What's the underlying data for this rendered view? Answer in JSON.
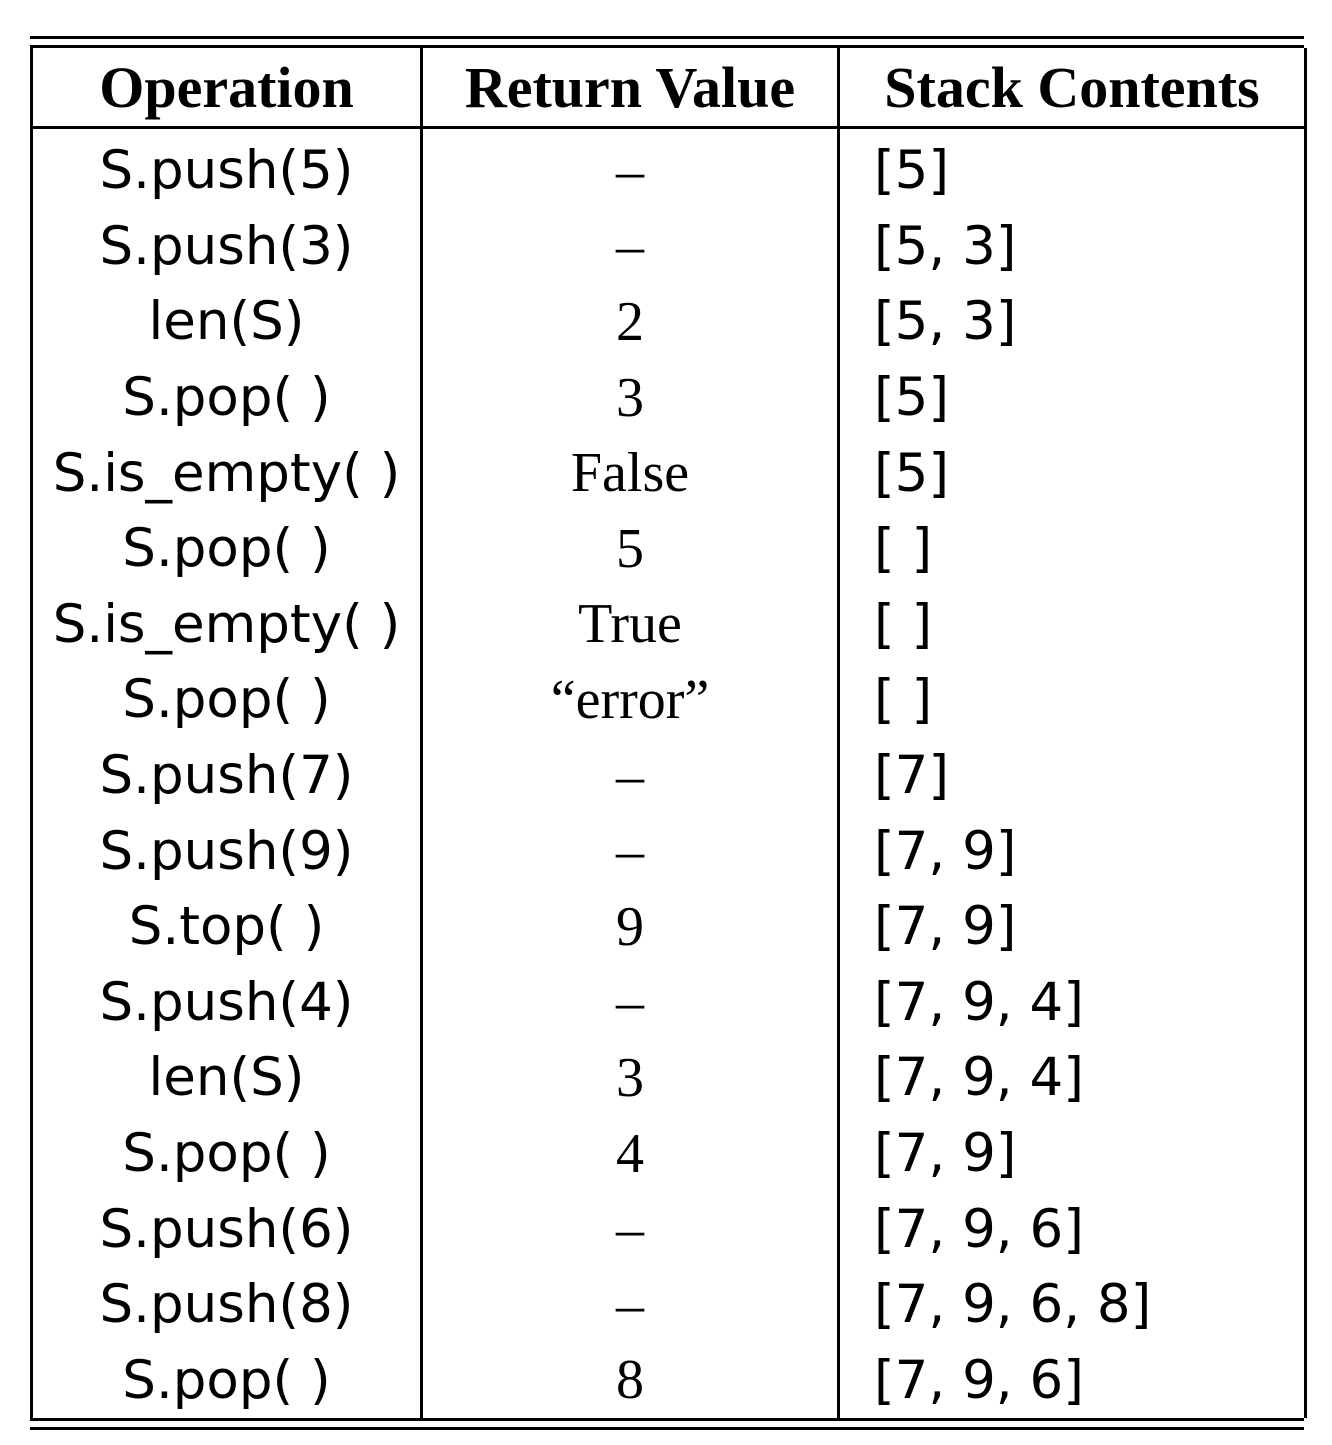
{
  "table": {
    "headers": [
      "Operation",
      "Return Value",
      "Stack Contents"
    ],
    "rows": [
      {
        "operation": "S.push(5)",
        "return_value": "–",
        "stack_contents": "[5]"
      },
      {
        "operation": "S.push(3)",
        "return_value": "–",
        "stack_contents": "[5, 3]"
      },
      {
        "operation": "len(S)",
        "return_value": "2",
        "stack_contents": "[5, 3]"
      },
      {
        "operation": "S.pop( )",
        "return_value": "3",
        "stack_contents": "[5]"
      },
      {
        "operation": "S.is_empty( )",
        "return_value": "False",
        "stack_contents": "[5]"
      },
      {
        "operation": "S.pop( )",
        "return_value": "5",
        "stack_contents": "[ ]"
      },
      {
        "operation": "S.is_empty( )",
        "return_value": "True",
        "stack_contents": "[ ]"
      },
      {
        "operation": "S.pop( )",
        "return_value": "“error”",
        "stack_contents": "[ ]"
      },
      {
        "operation": "S.push(7)",
        "return_value": "–",
        "stack_contents": "[7]"
      },
      {
        "operation": "S.push(9)",
        "return_value": "–",
        "stack_contents": "[7, 9]"
      },
      {
        "operation": "S.top( )",
        "return_value": "9",
        "stack_contents": "[7, 9]"
      },
      {
        "operation": "S.push(4)",
        "return_value": "–",
        "stack_contents": "[7, 9, 4]"
      },
      {
        "operation": "len(S)",
        "return_value": "3",
        "stack_contents": "[7, 9, 4]"
      },
      {
        "operation": "S.pop( )",
        "return_value": "4",
        "stack_contents": "[7, 9]"
      },
      {
        "operation": "S.push(6)",
        "return_value": "–",
        "stack_contents": "[7, 9, 6]"
      },
      {
        "operation": "S.push(8)",
        "return_value": "–",
        "stack_contents": "[7, 9, 6, 8]"
      },
      {
        "operation": "S.pop( )",
        "return_value": "8",
        "stack_contents": "[7, 9, 6]"
      }
    ]
  }
}
